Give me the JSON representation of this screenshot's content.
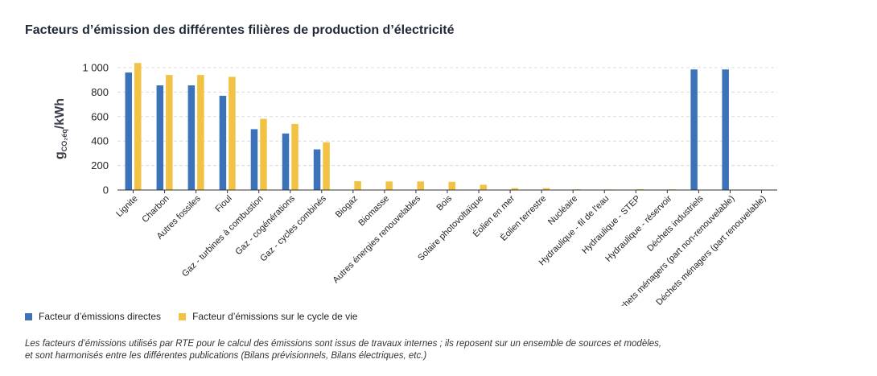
{
  "colors": {
    "direct": "#3b72b8",
    "lifecycle": "#f2c244",
    "grid": "#dcdcdc",
    "axis": "#333333"
  },
  "chart_data": {
    "type": "bar",
    "title": "Facteurs d’émission des différentes filières de production d’électricité",
    "ylabel": {
      "main": "g",
      "sub": "CO₂éq",
      "suffix": "/kWh"
    },
    "ylim": [
      0,
      1000
    ],
    "yticks": [
      "0",
      "200",
      "400",
      "600",
      "800",
      "1 000"
    ],
    "ytick_values": [
      0,
      200,
      400,
      600,
      800,
      1000
    ],
    "grid": true,
    "legend_position": "bottom-left",
    "categories": [
      "Lignite",
      "Charbon",
      "Autres fossiles",
      "Fioul",
      "Gaz - turbines à combustion",
      "Gaz - cogénérations",
      "Gaz - cycles combinés",
      "Biogaz",
      "Biomasse",
      "Autres énergies renouvelables",
      "Bois",
      "Solaire photovoltaïque",
      "Éolien en mer",
      "Éolien terrestre",
      "Nucléaire",
      "Hydraulique - fil de l'eau",
      "Hydraulique - STEP",
      "Hydraulique - réservoir",
      "Déchets industriels",
      "Déchets ménagers (part non-renouvelable)",
      "Déchets ménagers (part renouvelable)"
    ],
    "series": [
      {
        "name": "Facteur d’émissions directes",
        "values": [
          960,
          855,
          855,
          770,
          497,
          462,
          332,
          0,
          0,
          0,
          0,
          0,
          0,
          0,
          0,
          0,
          0,
          0,
          985,
          985,
          0
        ]
      },
      {
        "name": "Facteur d’émissions sur le cycle de vie",
        "values": [
          1038,
          940,
          940,
          925,
          582,
          540,
          390,
          72,
          70,
          70,
          67,
          43,
          15,
          15,
          6,
          5,
          7,
          6,
          0,
          0,
          0
        ]
      }
    ]
  },
  "footnote": {
    "line1": "Les facteurs d’émissions utilisés par RTE pour le calcul des émissions sont issus de travaux internes ; ils reposent sur un ensemble de sources et modèles,",
    "line2": "et sont harmonisés entre les différentes publications (Bilans prévisionnels, Bilans électriques, etc.)"
  }
}
